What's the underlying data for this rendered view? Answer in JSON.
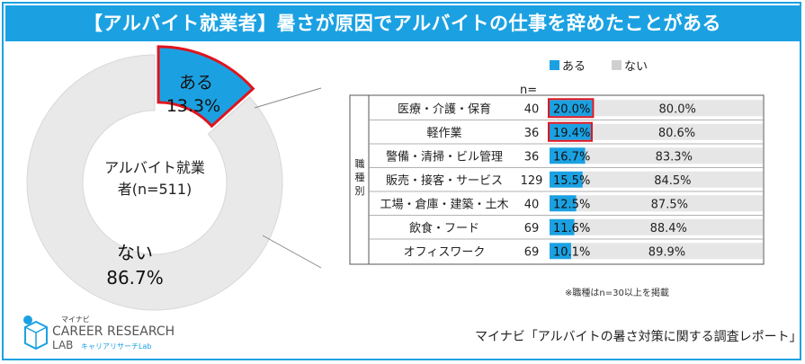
{
  "title": "【アルバイト就業者】暑さが原因でアルバイトの仕事を辞めたことがある",
  "legend": {
    "yes": "ある",
    "no": "ない"
  },
  "n_header": "n=",
  "group_label": "職種別",
  "colors": {
    "accent": "#1ba1e2",
    "bar_yes": "#1ba1e2",
    "bar_no": "#e6e6e6",
    "highlight": "#e0141e"
  },
  "donut": {
    "center_label_1": "アルバイト就業",
    "center_label_2": "者(n=511)",
    "yes_label": "ある",
    "yes_value": "13.3%",
    "no_label": "ない",
    "no_value": "86.7%"
  },
  "chart_data": [
    {
      "type": "pie",
      "title": "アルバイト就業者(n=511)",
      "categories": [
        "ある",
        "ない"
      ],
      "values": [
        13.3,
        86.7
      ]
    },
    {
      "type": "bar",
      "orientation": "horizontal",
      "stacked": true,
      "categories": [
        "医療・介護・保育",
        "軽作業",
        "警備・清掃・ビル管理",
        "販売・接客・サービス",
        "工場・倉庫・建築・土木",
        "飲食・フード",
        "オフィスワーク"
      ],
      "n": [
        40,
        36,
        36,
        129,
        40,
        69,
        69
      ],
      "series": [
        {
          "name": "ある",
          "values": [
            20.0,
            19.4,
            16.7,
            15.5,
            12.5,
            11.6,
            10.1
          ]
        },
        {
          "name": "ない",
          "values": [
            80.0,
            80.6,
            83.3,
            84.5,
            87.5,
            88.4,
            89.9
          ]
        }
      ],
      "yes_labels": [
        "20.0%",
        "19.4%",
        "16.7%",
        "15.5%",
        "12.5%",
        "11.6%",
        "10.1%"
      ],
      "no_labels": [
        "80.0%",
        "80.6%",
        "83.3%",
        "84.5%",
        "87.5%",
        "88.4%",
        "89.9%"
      ],
      "highlighted": [
        0,
        1
      ],
      "xlim": [
        0,
        100
      ]
    }
  ],
  "note": "※職種はn=30以上を掲載",
  "source": "マイナビ「アルバイトの暑さ対策に関する調査レポート」",
  "logo": {
    "top": "マイナビ",
    "line1": "CAREER RESEARCH",
    "line2": "LAB",
    "sub": "キャリアリサーチLab"
  }
}
